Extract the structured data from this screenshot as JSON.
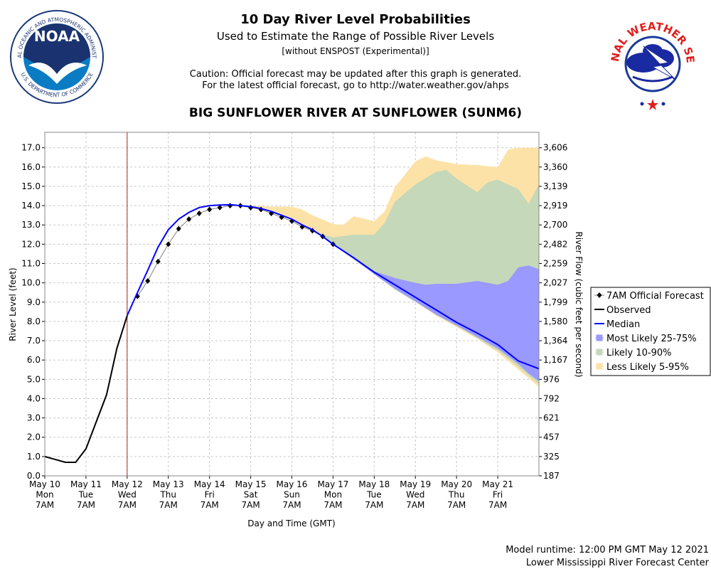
{
  "chart_data": {
    "type": "line",
    "title": "10 Day River Level Probabilities",
    "subtitle": "Used to Estimate the Range of Possible River Levels",
    "note": "[without ENSPOST (Experimental)]",
    "caution": [
      "Caution: Official forecast may be updated after this graph is generated.",
      "For the latest official forecast, go to http://water.weather.gov/ahps"
    ],
    "station": "BIG SUNFLOWER RIVER AT SUNFLOWER (SUNM6)",
    "ylabel": "River Level (feet)",
    "y2label": "River Flow (cubic feet per second)",
    "xlabel": "Day and Time (GMT)",
    "footer": [
      "Model runtime: 12:00 PM GMT May 12 2021",
      "Lower Mississippi River Forecast Center"
    ],
    "logos": {
      "noaa": "NOAA",
      "noaa_ring": "NATIONAL OCEANIC AND ATMOSPHERIC ADMINISTRATION",
      "noaa_bottom": "U.S. DEPARTMENT OF COMMERCE",
      "nws": "NATIONAL WEATHER SERVICE"
    },
    "grid": true,
    "xlim": [
      "May 10 07:00",
      "May 22 07:00"
    ],
    "xticks": [
      {
        "value": "May 10 07:00",
        "label": [
          "May 10",
          "Mon",
          "7AM"
        ]
      },
      {
        "value": "May 11 07:00",
        "label": [
          "May 11",
          "Tue",
          "7AM"
        ]
      },
      {
        "value": "May 12 07:00",
        "label": [
          "May 12",
          "Wed",
          "7AM"
        ]
      },
      {
        "value": "May 13 07:00",
        "label": [
          "May 13",
          "Thu",
          "7AM"
        ]
      },
      {
        "value": "May 14 07:00",
        "label": [
          "May 14",
          "Fri",
          "7AM"
        ]
      },
      {
        "value": "May 15 07:00",
        "label": [
          "May 15",
          "Sat",
          "7AM"
        ]
      },
      {
        "value": "May 16 07:00",
        "label": [
          "May 16",
          "Sun",
          "7AM"
        ]
      },
      {
        "value": "May 17 07:00",
        "label": [
          "May 17",
          "Mon",
          "7AM"
        ]
      },
      {
        "value": "May 18 07:00",
        "label": [
          "May 18",
          "Tue",
          "7AM"
        ]
      },
      {
        "value": "May 19 07:00",
        "label": [
          "May 19",
          "Wed",
          "7AM"
        ]
      },
      {
        "value": "May 20 07:00",
        "label": [
          "May 20",
          "Thu",
          "7AM"
        ]
      },
      {
        "value": "May 21 07:00",
        "label": [
          "May 21",
          "Fri",
          "7AM"
        ]
      }
    ],
    "ylim": [
      0,
      17.8
    ],
    "yticks": [
      {
        "value": 0,
        "label": "0.0"
      },
      {
        "value": 1,
        "label": "1.0"
      },
      {
        "value": 2,
        "label": "2.0"
      },
      {
        "value": 3,
        "label": "3.0"
      },
      {
        "value": 4,
        "label": "4.0"
      },
      {
        "value": 5,
        "label": "5.0"
      },
      {
        "value": 6,
        "label": "6.0"
      },
      {
        "value": 7,
        "label": "7.0"
      },
      {
        "value": 8,
        "label": "8.0"
      },
      {
        "value": 9,
        "label": "9.0"
      },
      {
        "value": 10,
        "label": "10.0"
      },
      {
        "value": 11,
        "label": "11.0"
      },
      {
        "value": 12,
        "label": "12.0"
      },
      {
        "value": 13,
        "label": "13.0"
      },
      {
        "value": 14,
        "label": "14.0"
      },
      {
        "value": 15,
        "label": "15.0"
      },
      {
        "value": 16,
        "label": "16.0"
      },
      {
        "value": 17,
        "label": "17.0"
      }
    ],
    "y2ticks": [
      187,
      325,
      457,
      621,
      792,
      976,
      {
        "value": 1167,
        "label": "1,167"
      },
      {
        "value": 1364,
        "label": "1,364"
      },
      {
        "value": 1580,
        "label": "1,580"
      },
      {
        "value": 1799,
        "label": "1,799"
      },
      {
        "value": 2027,
        "label": "2,027"
      },
      {
        "value": 2259,
        "label": "2,259"
      },
      {
        "value": 2482,
        "label": "2,482"
      },
      {
        "value": 2700,
        "label": "2,700"
      },
      {
        "value": 2919,
        "label": "2,919"
      },
      {
        "value": 3139,
        "label": "3,139"
      },
      {
        "value": 3360,
        "label": "3,360"
      },
      {
        "value": 3606,
        "label": "3,606"
      }
    ],
    "series": [
      {
        "name": "7AM Official Forecast",
        "color": "#000000",
        "kind": "forecast",
        "x": [
          "May 12 13:00",
          "May 12 19:00",
          "May 13 01:00",
          "May 13 07:00",
          "May 13 13:00",
          "May 13 19:00",
          "May 14 01:00",
          "May 14 07:00",
          "May 14 13:00",
          "May 14 19:00",
          "May 15 01:00",
          "May 15 07:00",
          "May 15 13:00",
          "May 15 19:00",
          "May 16 01:00",
          "May 16 07:00",
          "May 16 13:00",
          "May 16 19:00",
          "May 17 01:00",
          "May 17 07:00"
        ],
        "values": [
          9.3,
          10.1,
          11.1,
          12.0,
          12.8,
          13.3,
          13.6,
          13.8,
          13.9,
          14.0,
          14.0,
          13.9,
          13.8,
          13.6,
          13.4,
          13.2,
          12.9,
          12.7,
          12.4,
          12.0
        ]
      },
      {
        "name": "Observed",
        "color": "#000000",
        "kind": "line",
        "x": [
          "May 10 07:00",
          "May 10 13:00",
          "May 10 19:00",
          "May 11 01:00",
          "May 11 07:00",
          "May 11 13:00",
          "May 11 19:00",
          "May 12 01:00",
          "May 12 07:00"
        ],
        "values": [
          1.0,
          0.85,
          0.7,
          0.7,
          1.4,
          2.8,
          4.2,
          6.6,
          8.3
        ]
      },
      {
        "name": "Median",
        "color": "#0000ff",
        "kind": "line",
        "x": [
          "May 12 07:00",
          "May 12 13:00",
          "May 12 19:00",
          "May 13 01:00",
          "May 13 07:00",
          "May 13 13:00",
          "May 13 19:00",
          "May 14 01:00",
          "May 14 07:00",
          "May 14 13:00",
          "May 14 19:00",
          "May 15 01:00",
          "May 15 07:00",
          "May 15 13:00",
          "May 15 19:00",
          "May 16 01:00",
          "May 16 07:00",
          "May 16 13:00",
          "May 16 19:00",
          "May 17 01:00",
          "May 17 07:00",
          "May 17 19:00",
          "May 18 07:00",
          "May 18 19:00",
          "May 19 07:00",
          "May 19 19:00",
          "May 20 07:00",
          "May 20 19:00",
          "May 21 07:00",
          "May 21 19:00",
          "May 22 07:00"
        ],
        "values": [
          8.3,
          9.5,
          10.65,
          11.85,
          12.75,
          13.3,
          13.65,
          13.9,
          14.0,
          14.03,
          14.05,
          14.0,
          13.95,
          13.85,
          13.7,
          13.5,
          13.3,
          13.0,
          12.75,
          12.4,
          12.0,
          11.3,
          10.55,
          9.9,
          9.25,
          8.6,
          7.95,
          7.4,
          6.8,
          5.95,
          5.55
        ]
      },
      {
        "name": "Most Likely 25-75%",
        "color": "#9999ff",
        "kind": "band",
        "x": [
          "May 17 07:00",
          "May 17 19:00",
          "May 18 07:00",
          "May 18 19:00",
          "May 19 07:00",
          "May 19 13:00",
          "May 19 19:00",
          "May 20 07:00",
          "May 20 19:00",
          "May 21 07:00",
          "May 21 13:00",
          "May 21 19:00",
          "May 22 01:00",
          "May 22 07:00"
        ],
        "upper": [
          12.0,
          11.3,
          10.6,
          10.25,
          10.0,
          9.9,
          9.95,
          9.95,
          10.1,
          9.9,
          10.1,
          10.8,
          10.9,
          10.7
        ],
        "lower": [
          12.0,
          11.25,
          10.45,
          9.7,
          9.05,
          8.7,
          8.35,
          7.8,
          7.2,
          6.6,
          6.2,
          5.8,
          5.3,
          4.9
        ]
      },
      {
        "name": "Likely 10-90%",
        "color": "#c5d8b9",
        "kind": "band",
        "x": [
          "May 16 19:00",
          "May 17 07:00",
          "May 17 19:00",
          "May 18 07:00",
          "May 18 13:00",
          "May 18 19:00",
          "May 19 07:00",
          "May 19 19:00",
          "May 20 01:00",
          "May 20 07:00",
          "May 20 19:00",
          "May 21 01:00",
          "May 21 07:00",
          "May 21 19:00",
          "May 22 01:00",
          "May 22 07:00"
        ],
        "upper": [
          12.7,
          12.35,
          12.5,
          12.5,
          13.1,
          14.2,
          15.1,
          15.75,
          15.85,
          15.4,
          14.7,
          15.2,
          15.35,
          14.85,
          14.1,
          15.1
        ],
        "lower": [
          12.7,
          12.0,
          11.2,
          10.45,
          10.05,
          9.65,
          9.0,
          8.35,
          8.05,
          7.75,
          7.15,
          6.8,
          6.5,
          5.65,
          5.2,
          4.75
        ]
      },
      {
        "name": "Less Likely 5-95%",
        "color": "#fde2a8",
        "kind": "band",
        "x": [
          "May 15 07:00",
          "May 15 19:00",
          "May 16 07:00",
          "May 16 13:00",
          "May 16 19:00",
          "May 17 07:00",
          "May 17 13:00",
          "May 17 19:00",
          "May 18 07:00",
          "May 18 13:00",
          "May 18 19:00",
          "May 19 07:00",
          "May 19 13:00",
          "May 19 19:00",
          "May 20 07:00",
          "May 20 19:00",
          "May 21 07:00",
          "May 21 13:00",
          "May 21 19:00",
          "May 22 07:00"
        ],
        "upper": [
          14.0,
          13.95,
          13.95,
          13.8,
          13.5,
          13.05,
          13.0,
          13.45,
          13.2,
          13.7,
          14.95,
          16.3,
          16.55,
          16.35,
          16.15,
          16.1,
          16.0,
          16.9,
          17.0,
          17.0
        ],
        "lower": [
          13.95,
          13.75,
          13.3,
          13.0,
          12.7,
          12.0,
          11.6,
          11.2,
          10.45,
          10.05,
          9.65,
          9.0,
          8.65,
          8.3,
          7.7,
          7.1,
          6.4,
          5.95,
          5.5,
          4.6
        ]
      }
    ]
  }
}
